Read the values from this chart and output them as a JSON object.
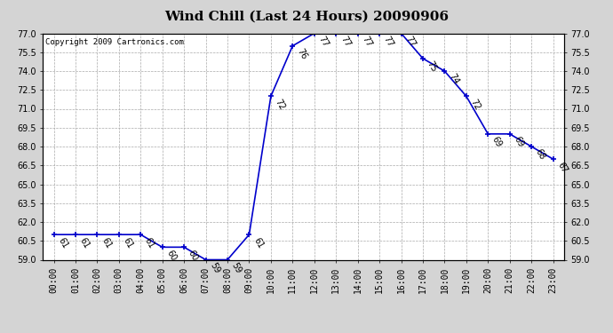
{
  "title": "Wind Chill (Last 24 Hours) 20090906",
  "copyright": "Copyright 2009 Cartronics.com",
  "hours": [
    0,
    1,
    2,
    3,
    4,
    5,
    6,
    7,
    8,
    9,
    10,
    11,
    12,
    13,
    14,
    15,
    16,
    17,
    18,
    19,
    20,
    21,
    22,
    23
  ],
  "values": [
    61,
    61,
    61,
    61,
    61,
    60,
    60,
    59,
    59,
    61,
    72,
    76,
    77,
    77,
    77,
    77,
    77,
    75,
    74,
    72,
    69,
    69,
    68,
    67
  ],
  "xlabels": [
    "00:00",
    "01:00",
    "02:00",
    "03:00",
    "04:00",
    "05:00",
    "06:00",
    "07:00",
    "08:00",
    "09:00",
    "10:00",
    "11:00",
    "12:00",
    "13:00",
    "14:00",
    "15:00",
    "16:00",
    "17:00",
    "18:00",
    "19:00",
    "20:00",
    "21:00",
    "22:00",
    "23:00"
  ],
  "ylim": [
    59.0,
    77.0
  ],
  "yticks": [
    59.0,
    60.5,
    62.0,
    63.5,
    65.0,
    66.5,
    68.0,
    69.5,
    71.0,
    72.5,
    74.0,
    75.5,
    77.0
  ],
  "line_color": "#0000cc",
  "marker": "+",
  "bg_color": "#d4d4d4",
  "plot_bg": "#ffffff",
  "grid_color": "#aaaaaa",
  "title_fontsize": 11,
  "label_fontsize": 7,
  "annot_fontsize": 7,
  "copyright_fontsize": 6.5
}
